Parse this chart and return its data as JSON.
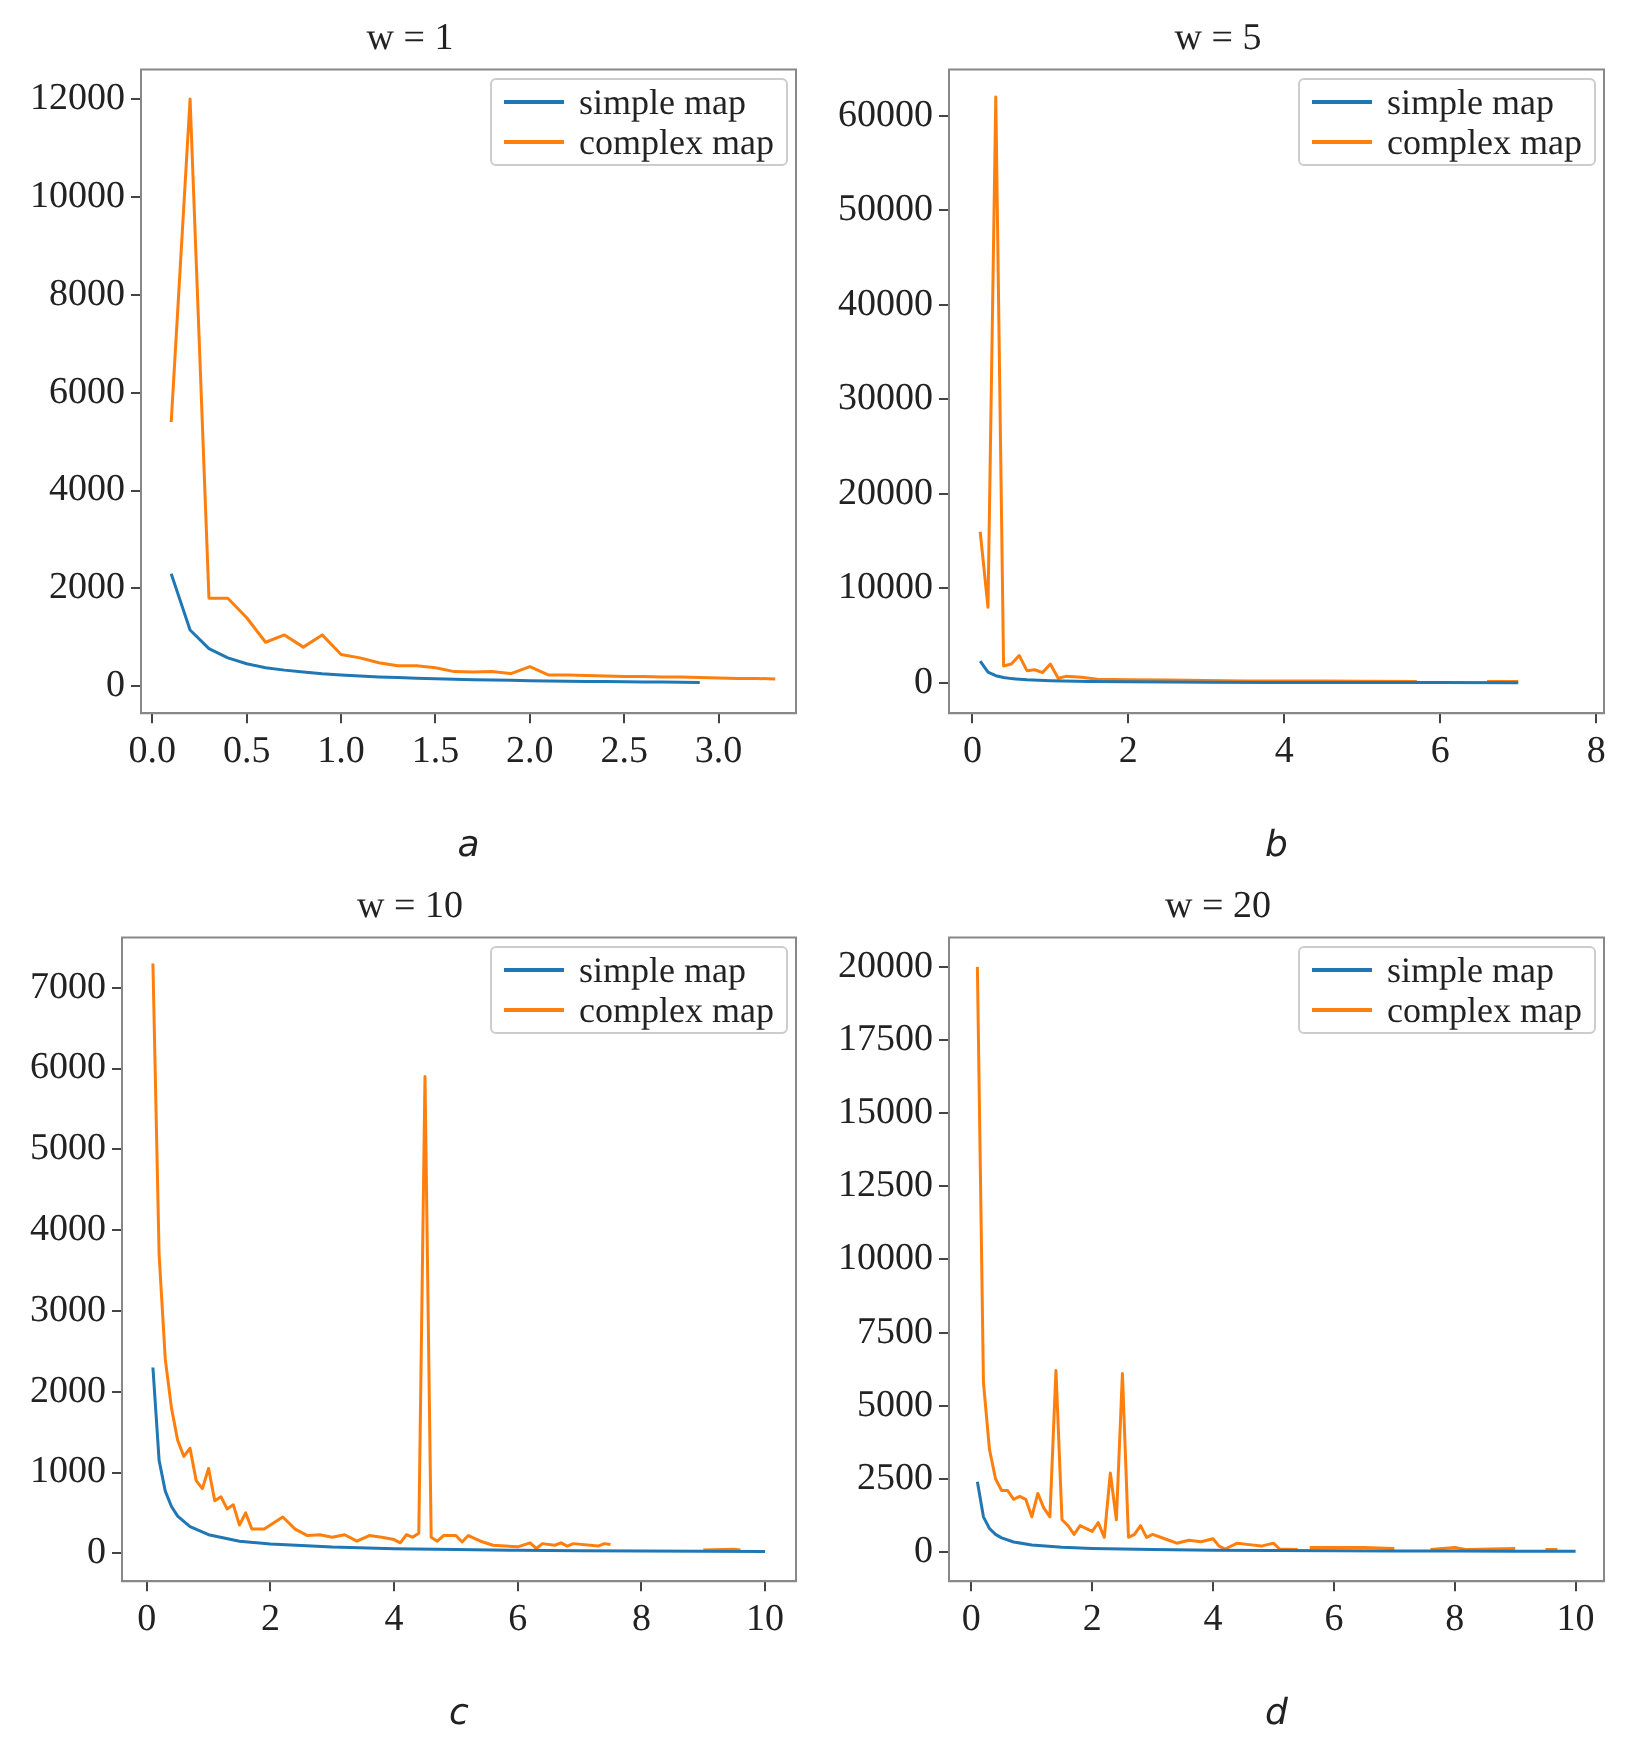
{
  "chart_data": [
    {
      "type": "line",
      "title": "w = 1",
      "xlabel": "a",
      "legend": "top right",
      "grid": false,
      "marker": "none",
      "xlim": [
        -0.06,
        3.41
      ],
      "ylim": [
        -550,
        12600
      ],
      "xticks": [
        {
          "value": 0,
          "label": "0.0"
        },
        0.5,
        {
          "value": 1,
          "label": "1.0"
        },
        1.5,
        {
          "value": 2,
          "label": "2.0"
        },
        2.5,
        {
          "value": 3,
          "label": "3.0"
        }
      ],
      "yticks": [
        0,
        2000,
        4000,
        6000,
        8000,
        10000,
        12000
      ],
      "series": [
        {
          "name": "simple map",
          "color": "#1f77b4",
          "x": [
            0.1,
            0.2,
            0.3,
            0.4,
            0.5,
            0.6,
            0.7,
            0.8,
            0.9,
            1.0,
            1.1,
            1.2,
            1.3,
            1.4,
            1.5,
            1.6,
            1.7,
            1.8,
            1.9,
            2.0,
            2.1,
            2.2,
            2.3,
            2.4,
            2.5,
            2.6,
            2.7,
            2.8,
            2.9
          ],
          "values": [
            2300,
            1150,
            770,
            580,
            460,
            380,
            330,
            290,
            255,
            230,
            210,
            190,
            177,
            165,
            153,
            144,
            135,
            128,
            121,
            115,
            110,
            105,
            100,
            96,
            92,
            88,
            85,
            82,
            79
          ]
        },
        {
          "name": "complex map",
          "color": "#ff7f0e",
          "x": [
            0.1,
            0.2,
            0.3,
            0.4,
            0.5,
            0.6,
            0.7,
            0.8,
            0.9,
            1.0,
            1.1,
            1.2,
            1.3,
            1.4,
            1.5,
            1.6,
            1.7,
            1.8,
            1.9,
            2.0,
            2.1,
            2.2,
            2.3,
            2.4,
            2.5,
            2.6,
            2.7,
            2.8,
            2.9,
            3.0,
            3.1,
            3.2,
            3.3
          ],
          "values": [
            5400,
            12000,
            1800,
            1800,
            1400,
            900,
            1050,
            800,
            1050,
            650,
            580,
            480,
            420,
            420,
            380,
            300,
            290,
            300,
            260,
            400,
            230,
            230,
            220,
            210,
            200,
            200,
            190,
            190,
            180,
            170,
            160,
            160,
            150
          ]
        }
      ]
    },
    {
      "type": "line",
      "title": "w = 5",
      "xlabel": "b",
      "legend": "top right",
      "grid": false,
      "marker": "none",
      "xlim": [
        -0.3,
        8.1
      ],
      "ylim": [
        -3200,
        64900
      ],
      "xticks": [
        0,
        2,
        4,
        6,
        8
      ],
      "yticks": [
        0,
        10000,
        20000,
        30000,
        40000,
        50000,
        60000
      ],
      "series": [
        {
          "name": "simple map",
          "color": "#1f77b4",
          "x": [
            0.1,
            0.2,
            0.3,
            0.4,
            0.5,
            0.7,
            1,
            1.5,
            2,
            3,
            4,
            5,
            6,
            7
          ],
          "values": [
            2300,
            1150,
            770,
            580,
            460,
            330,
            230,
            150,
            115,
            77,
            58,
            46,
            38,
            33
          ]
        },
        {
          "name": "complex map",
          "color": "#ff7f0e",
          "x": [
            0.1,
            0.2,
            0.3,
            0.4,
            0.5,
            0.6,
            0.7,
            0.8,
            0.9,
            1.0,
            1.1,
            1.2,
            1.4,
            1.6,
            2,
            2.5,
            3,
            3.5,
            4,
            4.5,
            5,
            5.7,
            6.2,
            6.6,
            7.0
          ],
          "values": [
            16000,
            8000,
            62000,
            1800,
            2000,
            2900,
            1300,
            1400,
            1100,
            2000,
            500,
            700,
            600,
            400,
            350,
            300,
            250,
            220,
            200,
            200,
            180,
            150,
            null,
            150,
            150
          ]
        }
      ]
    },
    {
      "type": "line",
      "title": "w = 10",
      "xlabel": "c",
      "legend": "top right",
      "grid": false,
      "marker": "none",
      "xlim": [
        -0.4,
        10.5
      ],
      "ylim": [
        -345,
        7620
      ],
      "xticks": [
        0,
        2,
        4,
        6,
        8,
        10
      ],
      "yticks": [
        0,
        1000,
        2000,
        3000,
        4000,
        5000,
        6000,
        7000
      ],
      "series": [
        {
          "name": "simple map",
          "color": "#1f77b4",
          "x": [
            0.1,
            0.2,
            0.3,
            0.4,
            0.5,
            0.7,
            1,
            1.5,
            2,
            3,
            4,
            5,
            6,
            7,
            8,
            9,
            10
          ],
          "values": [
            2300,
            1150,
            770,
            580,
            460,
            330,
            230,
            150,
            115,
            77,
            58,
            46,
            38,
            33,
            29,
            26,
            23
          ]
        },
        {
          "name": "complex map",
          "color": "#ff7f0e",
          "x": [
            0.1,
            0.2,
            0.3,
            0.4,
            0.5,
            0.6,
            0.7,
            0.8,
            0.9,
            1.0,
            1.1,
            1.2,
            1.3,
            1.4,
            1.5,
            1.6,
            1.7,
            1.9,
            2.0,
            2.2,
            2.4,
            2.6,
            2.8,
            3.0,
            3.2,
            3.4,
            3.6,
            3.8,
            4.0,
            4.1,
            4.2,
            4.3,
            4.4,
            4.5,
            4.6,
            4.7,
            4.8,
            5.0,
            5.1,
            5.2,
            5.4,
            5.6,
            5.8,
            6.0,
            6.2,
            6.3,
            6.4,
            6.6,
            6.7,
            6.8,
            6.9,
            7.3,
            7.4,
            7.5,
            8.0,
            9.0,
            9.5,
            9.6
          ],
          "values": [
            7300,
            3700,
            2400,
            1800,
            1400,
            1200,
            1300,
            900,
            800,
            1050,
            650,
            700,
            550,
            600,
            350,
            500,
            300,
            300,
            350,
            450,
            300,
            220,
            230,
            200,
            230,
            150,
            220,
            200,
            170,
            130,
            230,
            200,
            250,
            5900,
            200,
            150,
            220,
            220,
            140,
            220,
            150,
            100,
            90,
            80,
            130,
            60,
            120,
            100,
            130,
            90,
            120,
            90,
            120,
            110,
            null,
            40,
            50,
            40
          ]
        }
      ]
    },
    {
      "type": "line",
      "title": "w = 20",
      "xlabel": "d",
      "legend": "top right",
      "grid": false,
      "marker": "none",
      "xlim": [
        -0.37,
        10.47
      ],
      "ylim": [
        -1000,
        21000
      ],
      "xticks": [
        0,
        2,
        4,
        6,
        8,
        10
      ],
      "yticks": [
        0,
        2500,
        5000,
        7500,
        10000,
        12500,
        15000,
        17500,
        20000
      ],
      "series": [
        {
          "name": "simple map",
          "color": "#1f77b4",
          "x": [
            0.1,
            0.2,
            0.3,
            0.4,
            0.5,
            0.7,
            1,
            1.5,
            2,
            3,
            4,
            5,
            6,
            7,
            8,
            9,
            10
          ],
          "values": [
            2400,
            1200,
            800,
            600,
            480,
            340,
            240,
            160,
            120,
            80,
            60,
            48,
            40,
            34,
            30,
            27,
            24
          ]
        },
        {
          "name": "complex map",
          "color": "#ff7f0e",
          "x": [
            0.1,
            0.2,
            0.3,
            0.4,
            0.5,
            0.6,
            0.7,
            0.8,
            0.9,
            1.0,
            1.1,
            1.2,
            1.3,
            1.4,
            1.5,
            1.6,
            1.7,
            1.8,
            2.0,
            2.1,
            2.2,
            2.3,
            2.4,
            2.5,
            2.6,
            2.7,
            2.8,
            2.9,
            3.0,
            3.2,
            3.4,
            3.6,
            3.8,
            4.0,
            4.1,
            4.2,
            4.4,
            4.6,
            4.8,
            5.0,
            5.1,
            5.4,
            5.5,
            5.6,
            6.0,
            6.5,
            7.0,
            7.3,
            7.6,
            8.0,
            8.2,
            9.0,
            9.3,
            9.5,
            9.7
          ],
          "values": [
            20000,
            5800,
            3500,
            2500,
            2100,
            2100,
            1800,
            1900,
            1800,
            1200,
            2000,
            1500,
            1200,
            6200,
            1100,
            900,
            600,
            900,
            700,
            1000,
            500,
            2700,
            1100,
            6100,
            500,
            600,
            900,
            500,
            600,
            450,
            300,
            400,
            350,
            450,
            200,
            100,
            300,
            250,
            200,
            300,
            100,
            80,
            null,
            150,
            150,
            150,
            120,
            null,
            80,
            150,
            80,
            120,
            null,
            80,
            80
          ]
        }
      ]
    }
  ]
}
